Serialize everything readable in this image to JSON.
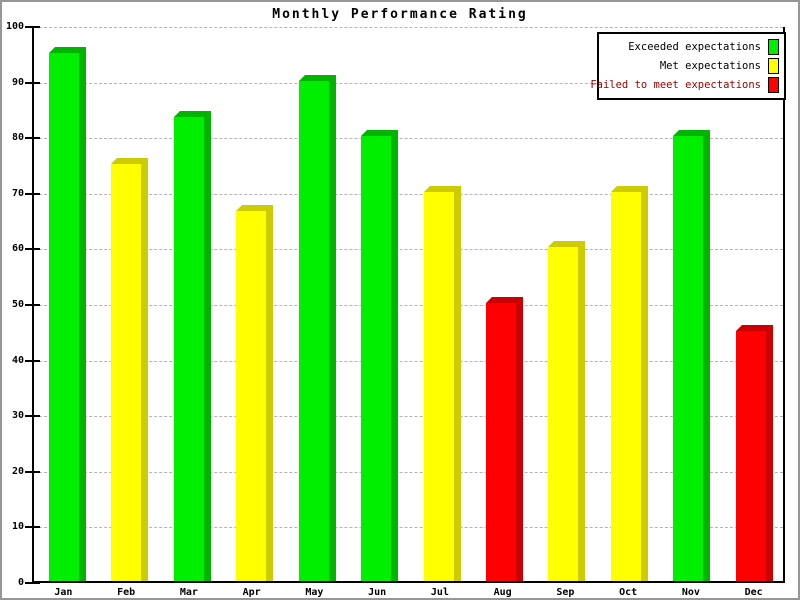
{
  "chart_data": {
    "type": "bar",
    "title": "Monthly Performance Rating",
    "xlabel": "",
    "ylabel": "",
    "ylim": [
      0,
      100
    ],
    "ytick_step": 10,
    "ytick_labels": [
      "0",
      "10",
      "20",
      "30",
      "40",
      "50",
      "60",
      "70",
      "80",
      "90",
      "100"
    ],
    "grid": "horizontal-dashed",
    "background": "#ffffff",
    "frame_color": "#969696",
    "gridline_color": "#b4b4b4",
    "axis_color": "#000000",
    "categories": [
      "Jan",
      "Feb",
      "Mar",
      "Apr",
      "May",
      "Jun",
      "Jul",
      "Aug",
      "Sep",
      "Oct",
      "Nov",
      "Dec"
    ],
    "values": [
      95,
      75,
      83.5,
      66.5,
      90,
      80,
      70,
      50,
      60,
      70,
      80,
      45
    ],
    "bar_series": [
      "exceeded",
      "met",
      "exceeded",
      "met",
      "exceeded",
      "exceeded",
      "met",
      "failed",
      "met",
      "met",
      "exceeded",
      "failed"
    ],
    "series_styles": {
      "exceeded": {
        "face": "#00ee00",
        "dark": "#00b400"
      },
      "met": {
        "face": "#ffff00",
        "dark": "#cccc00"
      },
      "failed": {
        "face": "#ff0000",
        "dark": "#cc0000"
      }
    },
    "legend": {
      "position": "top-right",
      "entries": [
        {
          "id": "exceeded",
          "label": "Exceeded expectations",
          "swatch_color": "#00ee00",
          "text_color": "#000000"
        },
        {
          "id": "met",
          "label": "Met expectations",
          "swatch_color": "#ffff00",
          "text_color": "#000000"
        },
        {
          "id": "failed",
          "label": "Failed to meet expectations",
          "swatch_color": "#ff0000",
          "text_color": "#990000"
        }
      ]
    }
  }
}
